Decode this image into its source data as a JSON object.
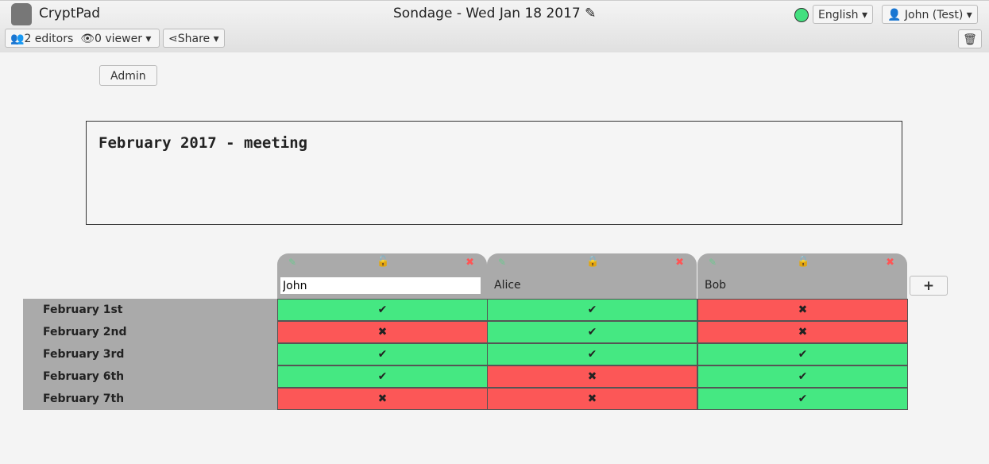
{
  "app": {
    "name": "CryptPad",
    "title": "Sondage - Wed Jan 18 2017"
  },
  "toolbar": {
    "editors": "2 editors",
    "viewers": "0 viewer",
    "share": "Share",
    "language": "English",
    "user": "John (Test)",
    "status_color": "#43e07f"
  },
  "admin_label": "Admin",
  "poll_title": "February 2017 - meeting",
  "columns": [
    {
      "name": "John",
      "locked": false,
      "editable": true
    },
    {
      "name": "Alice",
      "locked": true
    },
    {
      "name": "Bob",
      "locked": true
    }
  ],
  "rows": [
    {
      "label": "February 1st",
      "votes": [
        true,
        true,
        false
      ]
    },
    {
      "label": "February 2nd",
      "votes": [
        false,
        true,
        false
      ]
    },
    {
      "label": "February 3rd",
      "votes": [
        true,
        true,
        true
      ]
    },
    {
      "label": "February 6th",
      "votes": [
        true,
        false,
        true
      ]
    },
    {
      "label": "February 7th",
      "votes": [
        false,
        false,
        true
      ]
    }
  ],
  "add_column_label": "+",
  "colors": {
    "yes": "#45e882",
    "no": "#fc5757"
  }
}
